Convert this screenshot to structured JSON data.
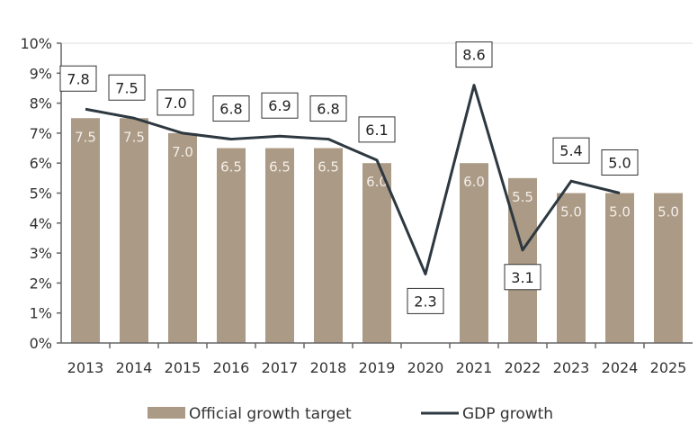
{
  "chart_data": {
    "type": "bar+line",
    "categories": [
      "2013",
      "2014",
      "2015",
      "2016",
      "2017",
      "2018",
      "2019",
      "2020",
      "2021",
      "2022",
      "2023",
      "2024",
      "2025"
    ],
    "series": [
      {
        "name": "Official growth target",
        "type": "bar",
        "values": [
          7.5,
          7.5,
          7.0,
          6.5,
          6.5,
          6.5,
          6.0,
          null,
          6.0,
          5.5,
          5.0,
          5.0,
          5.0
        ],
        "color": "#ab9a85"
      },
      {
        "name": "GDP growth",
        "type": "line",
        "values": [
          7.8,
          7.5,
          7.0,
          6.8,
          6.9,
          6.8,
          6.1,
          2.3,
          8.6,
          3.1,
          5.4,
          5.0,
          null
        ],
        "color": "#2d3840"
      }
    ],
    "yticks": [
      "0%",
      "1%",
      "2%",
      "3%",
      "4%",
      "5%",
      "6%",
      "7%",
      "8%",
      "9%",
      "10%"
    ],
    "ylim": [
      0,
      10
    ],
    "legend_position": "bottom",
    "grid": false
  }
}
